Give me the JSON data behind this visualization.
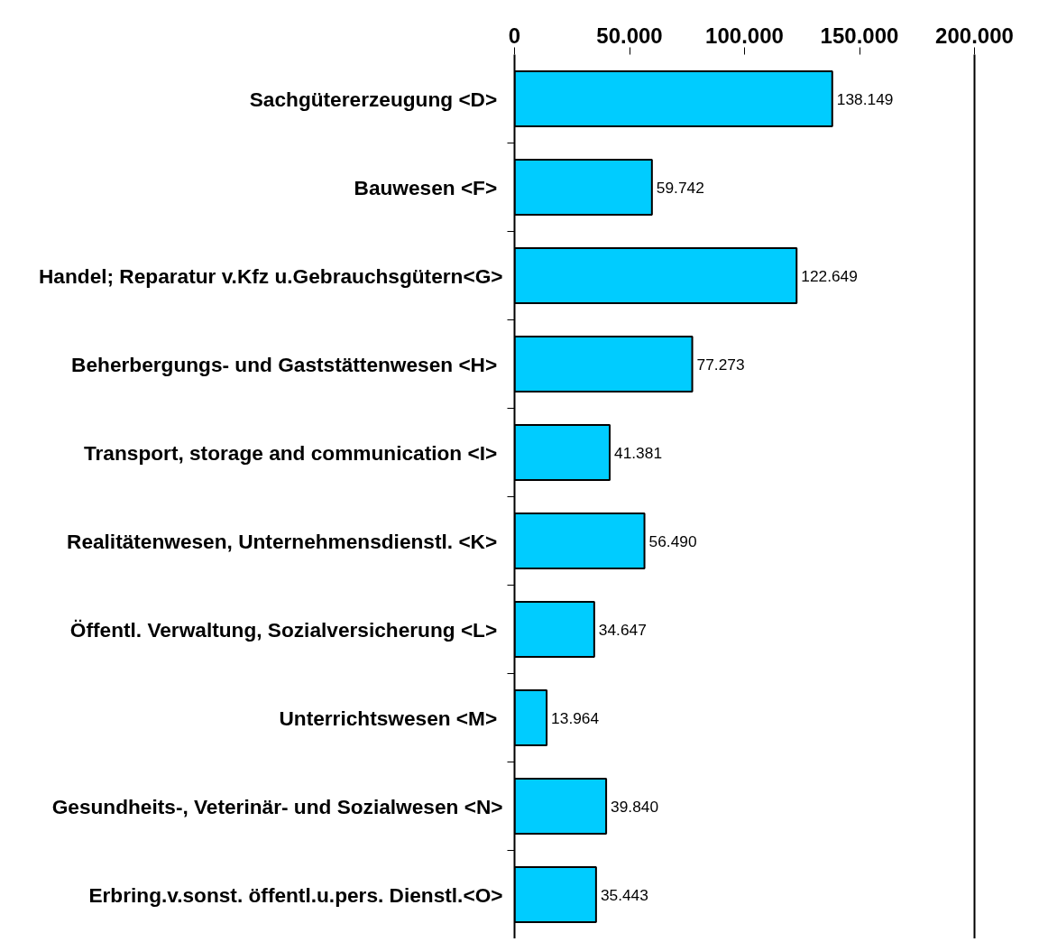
{
  "chart_data": {
    "type": "bar",
    "orientation": "horizontal",
    "categories": [
      "Sachgütererzeugung  <D>",
      "Bauwesen  <F>",
      "Handel; Reparatur v.Kfz u.Gebrauchsgütern<G>",
      "Beherbergungs- und Gaststättenwesen  <H>",
      "Transport, storage and communication  <I>",
      "Realitätenwesen, Unternehmensdienstl.  <K>",
      "Öffentl. Verwaltung, Sozialversicherung  <L>",
      "Unterrichtswesen  <M>",
      "Gesundheits-, Veterinär- und Sozialwesen <N>",
      "Erbring.v.sonst. öffentl.u.pers. Dienstl.<O>"
    ],
    "values": [
      138149,
      59742,
      122649,
      77273,
      41381,
      56490,
      34647,
      13964,
      39840,
      35443
    ],
    "value_labels": [
      "138.149",
      "59.742",
      "122.649",
      "77.273",
      "41.381",
      "56.490",
      "34.647",
      "13.964",
      "39.840",
      "35.443"
    ],
    "color": "#00ccff",
    "xlim": [
      0,
      200000
    ],
    "xticks": [
      {
        "value": 0,
        "label": "0"
      },
      {
        "value": 50000,
        "label": "50.000"
      },
      {
        "value": 100000,
        "label": "100.000"
      },
      {
        "value": 150000,
        "label": "150.000"
      },
      {
        "value": 200000,
        "label": "200.000"
      }
    ]
  }
}
